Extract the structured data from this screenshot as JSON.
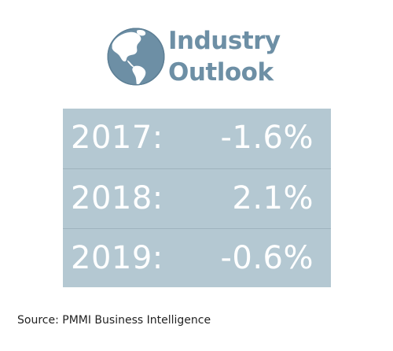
{
  "header": {
    "icon": "globe-icon",
    "title_line1": "Industry",
    "title_line2": "Outlook"
  },
  "outlook": {
    "rows": [
      {
        "year": "2017:",
        "value": "-1.6%"
      },
      {
        "year": "2018:",
        "value": "2.1%"
      },
      {
        "year": "2019:",
        "value": "-0.6%"
      }
    ]
  },
  "source": "Source: PMMI Business Intelligence",
  "colors": {
    "accent": "#6d8fa5",
    "table_background": "#b4c8d2",
    "text_on_table": "#ffffff"
  }
}
